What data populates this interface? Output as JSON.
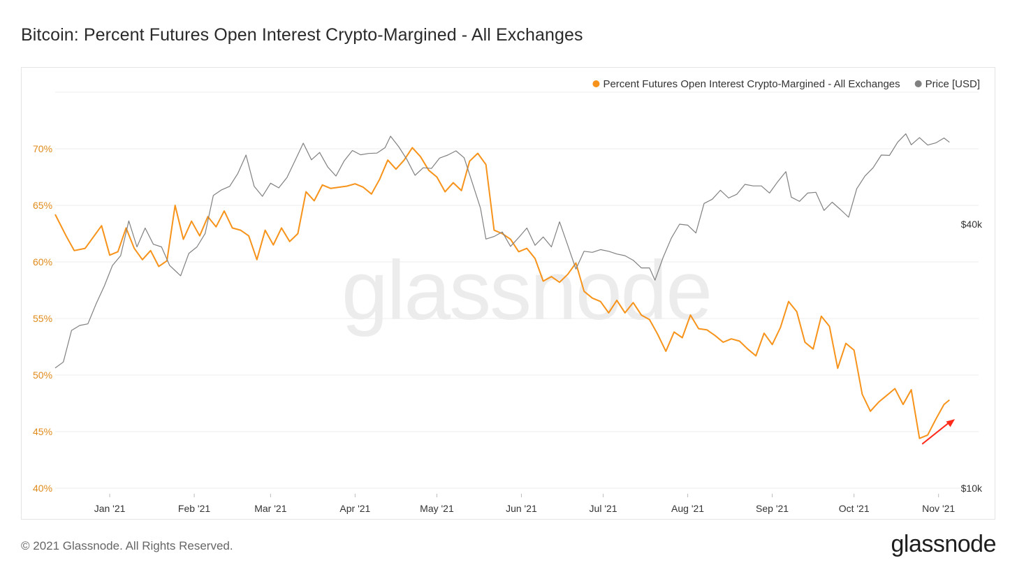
{
  "title": "Bitcoin: Percent Futures Open Interest Crypto-Margined - All Exchanges",
  "footer": {
    "copyright": "© 2021 Glassnode. All Rights Reserved.",
    "logo": "glassnode"
  },
  "watermark": "glassnode",
  "colors": {
    "percent_series": "#f7931a",
    "price_series": "#808080",
    "grid": "#ececec",
    "left_axis_labels": "#e08a1a",
    "right_axis_labels": "#333333",
    "annotation_arrow": "#ff2a1a"
  },
  "chart_data": {
    "type": "line",
    "legend_position": "top-right",
    "grid": true,
    "x_ticks": [
      "Jan '21",
      "Feb '21",
      "Mar '21",
      "Apr '21",
      "May '21",
      "Jun '21",
      "Jul '21",
      "Aug '21",
      "Sep '21",
      "Oct '21",
      "Nov '21"
    ],
    "x_tick_dates": [
      "2021-01-01",
      "2021-02-01",
      "2021-03-01",
      "2021-04-01",
      "2021-05-01",
      "2021-06-01",
      "2021-07-01",
      "2021-08-01",
      "2021-09-01",
      "2021-10-01",
      "2021-11-01"
    ],
    "xlim": [
      "2020-12-12",
      "2021-11-08"
    ],
    "y_left": {
      "label": "",
      "ticks": [
        "40%",
        "45%",
        "50%",
        "55%",
        "60%",
        "65%",
        "70%"
      ],
      "tick_values": [
        40,
        45,
        50,
        55,
        60,
        65,
        70
      ],
      "ylim": [
        40,
        75
      ]
    },
    "y_right": {
      "label": "",
      "scale": "log",
      "ticks": [
        "$10k",
        "$40k"
      ],
      "tick_values": [
        10000,
        40000
      ]
    },
    "series": [
      {
        "name": "Percent Futures Open Interest Crypto-Margined - All Exchanges",
        "axis": "left",
        "color": "#f7931a",
        "points": [
          [
            "2020-12-12",
            64.2
          ],
          [
            "2020-12-16",
            62.3
          ],
          [
            "2020-12-19",
            61.0
          ],
          [
            "2020-12-23",
            61.2
          ],
          [
            "2020-12-26",
            62.2
          ],
          [
            "2020-12-29",
            63.2
          ],
          [
            "2021-01-01",
            60.6
          ],
          [
            "2021-01-04",
            60.9
          ],
          [
            "2021-01-07",
            63.0
          ],
          [
            "2021-01-10",
            61.2
          ],
          [
            "2021-01-13",
            60.2
          ],
          [
            "2021-01-16",
            61.0
          ],
          [
            "2021-01-19",
            59.6
          ],
          [
            "2021-01-22",
            60.1
          ],
          [
            "2021-01-25",
            65.0
          ],
          [
            "2021-01-28",
            62.0
          ],
          [
            "2021-01-31",
            63.6
          ],
          [
            "2021-02-03",
            62.3
          ],
          [
            "2021-02-06",
            64.0
          ],
          [
            "2021-02-09",
            63.1
          ],
          [
            "2021-02-12",
            64.5
          ],
          [
            "2021-02-15",
            63.0
          ],
          [
            "2021-02-18",
            62.8
          ],
          [
            "2021-02-21",
            62.3
          ],
          [
            "2021-02-24",
            60.2
          ],
          [
            "2021-02-27",
            62.8
          ],
          [
            "2021-03-02",
            61.5
          ],
          [
            "2021-03-05",
            63.0
          ],
          [
            "2021-03-08",
            61.8
          ],
          [
            "2021-03-11",
            62.5
          ],
          [
            "2021-03-14",
            66.2
          ],
          [
            "2021-03-17",
            65.4
          ],
          [
            "2021-03-20",
            66.8
          ],
          [
            "2021-03-23",
            66.5
          ],
          [
            "2021-03-26",
            66.6
          ],
          [
            "2021-03-29",
            66.7
          ],
          [
            "2021-04-01",
            66.9
          ],
          [
            "2021-04-04",
            66.6
          ],
          [
            "2021-04-07",
            66.0
          ],
          [
            "2021-04-10",
            67.3
          ],
          [
            "2021-04-13",
            69.0
          ],
          [
            "2021-04-16",
            68.2
          ],
          [
            "2021-04-19",
            69.0
          ],
          [
            "2021-04-22",
            70.1
          ],
          [
            "2021-04-25",
            69.3
          ],
          [
            "2021-04-28",
            68.1
          ],
          [
            "2021-05-01",
            67.5
          ],
          [
            "2021-05-04",
            66.2
          ],
          [
            "2021-05-07",
            67.0
          ],
          [
            "2021-05-10",
            66.3
          ],
          [
            "2021-05-13",
            68.9
          ],
          [
            "2021-05-16",
            69.6
          ],
          [
            "2021-05-19",
            68.6
          ],
          [
            "2021-05-22",
            62.8
          ],
          [
            "2021-05-25",
            62.5
          ],
          [
            "2021-05-28",
            62.0
          ],
          [
            "2021-05-31",
            60.9
          ],
          [
            "2021-06-03",
            61.2
          ],
          [
            "2021-06-06",
            60.3
          ],
          [
            "2021-06-09",
            58.3
          ],
          [
            "2021-06-12",
            58.7
          ],
          [
            "2021-06-15",
            58.2
          ],
          [
            "2021-06-18",
            58.9
          ],
          [
            "2021-06-21",
            59.9
          ],
          [
            "2021-06-24",
            57.4
          ],
          [
            "2021-06-27",
            56.8
          ],
          [
            "2021-06-30",
            56.5
          ],
          [
            "2021-07-03",
            55.5
          ],
          [
            "2021-07-06",
            56.6
          ],
          [
            "2021-07-09",
            55.5
          ],
          [
            "2021-07-12",
            56.4
          ],
          [
            "2021-07-15",
            55.3
          ],
          [
            "2021-07-18",
            54.9
          ],
          [
            "2021-07-21",
            53.6
          ],
          [
            "2021-07-24",
            52.1
          ],
          [
            "2021-07-27",
            53.8
          ],
          [
            "2021-07-30",
            53.3
          ],
          [
            "2021-08-02",
            55.3
          ],
          [
            "2021-08-05",
            54.1
          ],
          [
            "2021-08-08",
            54.0
          ],
          [
            "2021-08-11",
            53.5
          ],
          [
            "2021-08-14",
            52.9
          ],
          [
            "2021-08-17",
            53.2
          ],
          [
            "2021-08-20",
            53.0
          ],
          [
            "2021-08-23",
            52.3
          ],
          [
            "2021-08-26",
            51.7
          ],
          [
            "2021-08-29",
            53.7
          ],
          [
            "2021-09-01",
            52.7
          ],
          [
            "2021-09-04",
            54.2
          ],
          [
            "2021-09-07",
            56.5
          ],
          [
            "2021-09-10",
            55.6
          ],
          [
            "2021-09-13",
            52.9
          ],
          [
            "2021-09-16",
            52.3
          ],
          [
            "2021-09-19",
            55.2
          ],
          [
            "2021-09-22",
            54.3
          ],
          [
            "2021-09-25",
            50.6
          ],
          [
            "2021-09-28",
            52.8
          ],
          [
            "2021-10-01",
            52.2
          ],
          [
            "2021-10-04",
            48.3
          ],
          [
            "2021-10-07",
            46.8
          ],
          [
            "2021-10-10",
            47.6
          ],
          [
            "2021-10-13",
            48.2
          ],
          [
            "2021-10-16",
            48.8
          ],
          [
            "2021-10-19",
            47.4
          ],
          [
            "2021-10-22",
            48.7
          ],
          [
            "2021-10-25",
            44.4
          ],
          [
            "2021-10-28",
            44.7
          ],
          [
            "2021-10-31",
            46.1
          ],
          [
            "2021-11-03",
            47.4
          ],
          [
            "2021-11-05",
            47.8
          ]
        ]
      },
      {
        "name": "Price [USD]",
        "axis": "right",
        "color": "#808080",
        "points": [
          [
            "2020-12-12",
            18800
          ],
          [
            "2020-12-15",
            19400
          ],
          [
            "2020-12-18",
            22900
          ],
          [
            "2020-12-21",
            23500
          ],
          [
            "2020-12-24",
            23700
          ],
          [
            "2020-12-27",
            26300
          ],
          [
            "2020-12-30",
            28900
          ],
          [
            "2021-01-02",
            32200
          ],
          [
            "2021-01-05",
            33900
          ],
          [
            "2021-01-08",
            40700
          ],
          [
            "2021-01-11",
            35500
          ],
          [
            "2021-01-14",
            39200
          ],
          [
            "2021-01-17",
            36000
          ],
          [
            "2021-01-20",
            35500
          ],
          [
            "2021-01-23",
            32200
          ],
          [
            "2021-01-27",
            30500
          ],
          [
            "2021-01-30",
            34300
          ],
          [
            "2021-02-02",
            35500
          ],
          [
            "2021-02-05",
            38100
          ],
          [
            "2021-02-08",
            46500
          ],
          [
            "2021-02-11",
            47900
          ],
          [
            "2021-02-14",
            48800
          ],
          [
            "2021-02-17",
            52200
          ],
          [
            "2021-02-20",
            57500
          ],
          [
            "2021-02-23",
            48800
          ],
          [
            "2021-02-26",
            46300
          ],
          [
            "2021-03-01",
            49600
          ],
          [
            "2021-03-04",
            48400
          ],
          [
            "2021-03-07",
            51100
          ],
          [
            "2021-03-10",
            55900
          ],
          [
            "2021-03-13",
            61200
          ],
          [
            "2021-03-16",
            56100
          ],
          [
            "2021-03-19",
            58300
          ],
          [
            "2021-03-22",
            54000
          ],
          [
            "2021-03-25",
            51500
          ],
          [
            "2021-03-28",
            55800
          ],
          [
            "2021-03-31",
            58900
          ],
          [
            "2021-04-03",
            57600
          ],
          [
            "2021-04-06",
            58000
          ],
          [
            "2021-04-09",
            58100
          ],
          [
            "2021-04-12",
            59800
          ],
          [
            "2021-04-14",
            63500
          ],
          [
            "2021-04-17",
            60100
          ],
          [
            "2021-04-20",
            56200
          ],
          [
            "2021-04-23",
            51700
          ],
          [
            "2021-04-26",
            53800
          ],
          [
            "2021-04-29",
            53600
          ],
          [
            "2021-05-02",
            56600
          ],
          [
            "2021-05-05",
            57500
          ],
          [
            "2021-05-08",
            58800
          ],
          [
            "2021-05-11",
            56700
          ],
          [
            "2021-05-14",
            49700
          ],
          [
            "2021-05-17",
            43500
          ],
          [
            "2021-05-19",
            37000
          ],
          [
            "2021-05-22",
            37500
          ],
          [
            "2021-05-25",
            38400
          ],
          [
            "2021-05-28",
            35600
          ],
          [
            "2021-05-31",
            37300
          ],
          [
            "2021-06-03",
            39200
          ],
          [
            "2021-06-06",
            35800
          ],
          [
            "2021-06-09",
            37400
          ],
          [
            "2021-06-12",
            35500
          ],
          [
            "2021-06-15",
            40500
          ],
          [
            "2021-06-18",
            35800
          ],
          [
            "2021-06-21",
            31600
          ],
          [
            "2021-06-24",
            34700
          ],
          [
            "2021-06-27",
            34500
          ],
          [
            "2021-06-30",
            35000
          ],
          [
            "2021-07-03",
            34700
          ],
          [
            "2021-07-06",
            34200
          ],
          [
            "2021-07-09",
            33900
          ],
          [
            "2021-07-12",
            33100
          ],
          [
            "2021-07-15",
            31800
          ],
          [
            "2021-07-18",
            31800
          ],
          [
            "2021-07-20",
            29800
          ],
          [
            "2021-07-23",
            33600
          ],
          [
            "2021-07-26",
            37200
          ],
          [
            "2021-07-29",
            40000
          ],
          [
            "2021-08-01",
            39800
          ],
          [
            "2021-08-04",
            38200
          ],
          [
            "2021-08-07",
            44600
          ],
          [
            "2021-08-10",
            45600
          ],
          [
            "2021-08-13",
            47800
          ],
          [
            "2021-08-16",
            45900
          ],
          [
            "2021-08-19",
            46800
          ],
          [
            "2021-08-22",
            49300
          ],
          [
            "2021-08-25",
            48900
          ],
          [
            "2021-08-28",
            48900
          ],
          [
            "2021-08-31",
            47100
          ],
          [
            "2021-09-03",
            50000
          ],
          [
            "2021-09-06",
            52700
          ],
          [
            "2021-09-08",
            46100
          ],
          [
            "2021-09-11",
            45100
          ],
          [
            "2021-09-14",
            47100
          ],
          [
            "2021-09-17",
            47300
          ],
          [
            "2021-09-20",
            43000
          ],
          [
            "2021-09-23",
            44900
          ],
          [
            "2021-09-26",
            43200
          ],
          [
            "2021-09-29",
            41500
          ],
          [
            "2021-10-02",
            48200
          ],
          [
            "2021-10-05",
            51500
          ],
          [
            "2021-10-08",
            53800
          ],
          [
            "2021-10-11",
            57500
          ],
          [
            "2021-10-14",
            57400
          ],
          [
            "2021-10-17",
            61500
          ],
          [
            "2021-10-20",
            64300
          ],
          [
            "2021-10-22",
            60700
          ],
          [
            "2021-10-25",
            63000
          ],
          [
            "2021-10-28",
            60600
          ],
          [
            "2021-10-31",
            61300
          ],
          [
            "2021-11-03",
            62900
          ],
          [
            "2021-11-05",
            61500
          ]
        ]
      }
    ],
    "annotations": [
      {
        "type": "arrow",
        "color": "#ff2a1a",
        "from": [
          "2021-10-26",
          43.9
        ],
        "to": [
          "2021-11-07",
          46.1
        ]
      }
    ]
  }
}
